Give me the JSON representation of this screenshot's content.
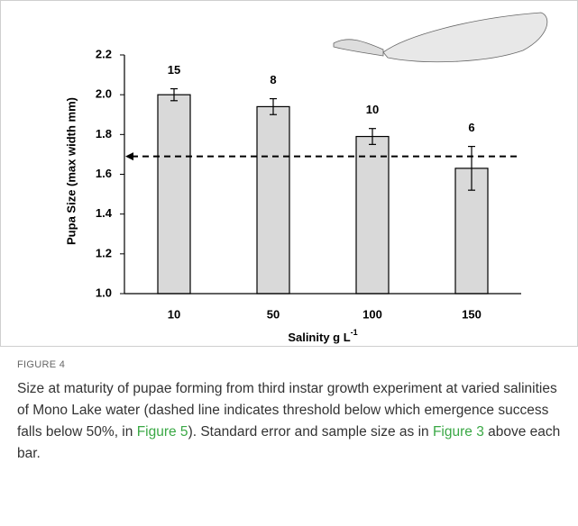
{
  "chart_data": {
    "type": "bar",
    "y_label": "Pupa Size (max width mm)",
    "x_label": "Salinity g L",
    "x_label_sup": "-1",
    "categories": [
      "10",
      "50",
      "100",
      "150"
    ],
    "values": [
      2.0,
      1.94,
      1.79,
      1.63
    ],
    "errors": [
      0.03,
      0.04,
      0.04,
      0.11
    ],
    "sample_sizes": [
      15,
      8,
      10,
      6
    ],
    "threshold": 1.69,
    "color": "#d9d9d9",
    "ylim": [
      1.0,
      2.2
    ],
    "yticks": [
      {
        "value": 1.0,
        "label": "1.0"
      },
      1.2,
      1.4,
      1.6,
      1.8,
      {
        "value": 2.0,
        "label": "2.0"
      },
      2.2
    ]
  },
  "figure_label": "FIGURE 4",
  "caption": [
    {
      "text": "Size at maturity of pupae forming from third instar growth experiment at varied salinities of Mono Lake water (dashed line indicates threshold below which emergence success falls below 50%, in ",
      "link": false
    },
    {
      "text": "Figure 5",
      "link": true
    },
    {
      "text": "). Standard error and sample size as in ",
      "link": false
    },
    {
      "text": "Figure 3",
      "link": true
    },
    {
      "text": " above each bar.",
      "link": false
    }
  ]
}
